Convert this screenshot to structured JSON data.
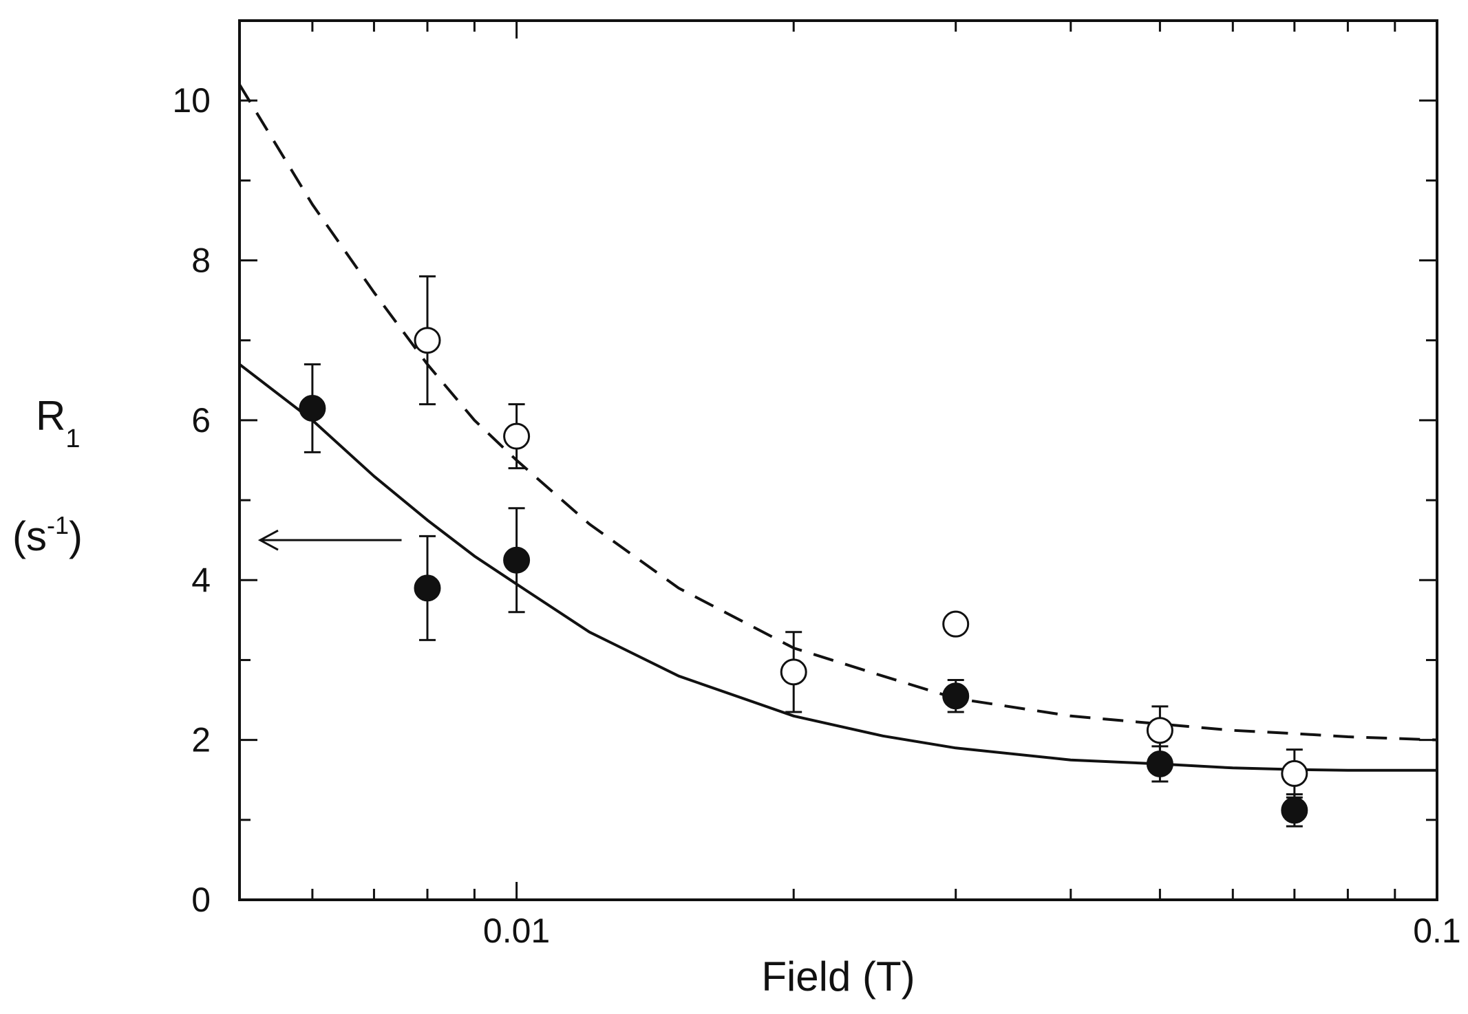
{
  "chart_data": {
    "type": "scatter",
    "title": "",
    "xlabel": "Field (T)",
    "ylabel": {
      "main": "R",
      "main_sub": "1",
      "unit_open": "(s",
      "unit_sup": "-1",
      "unit_close": ")"
    },
    "x_scale": "log",
    "xlim": [
      0.005,
      0.1
    ],
    "ylim": [
      0,
      11
    ],
    "x_tick_labels": [
      {
        "value": 0.01,
        "label": "0.01"
      },
      {
        "value": 0.1,
        "label": "0.1"
      }
    ],
    "y_tick_labels": [
      {
        "value": 0,
        "label": "0"
      },
      {
        "value": 2,
        "label": "2"
      },
      {
        "value": 4,
        "label": "4"
      },
      {
        "value": 6,
        "label": "6"
      },
      {
        "value": 8,
        "label": "8"
      },
      {
        "value": 10,
        "label": "10"
      }
    ],
    "grid": false,
    "series": [
      {
        "marker": "filled-circle",
        "points": [
          {
            "x": 0.006,
            "y": 6.15,
            "err": 0.55
          },
          {
            "x": 0.008,
            "y": 3.9,
            "err": 0.65
          },
          {
            "x": 0.01,
            "y": 4.25,
            "err": 0.65
          },
          {
            "x": 0.03,
            "y": 2.55,
            "err": 0.2
          },
          {
            "x": 0.05,
            "y": 1.7,
            "err": 0.22
          },
          {
            "x": 0.07,
            "y": 1.12,
            "err": 0.2
          }
        ]
      },
      {
        "marker": "open-circle",
        "points": [
          {
            "x": 0.008,
            "y": 7.0,
            "err": 0.8
          },
          {
            "x": 0.01,
            "y": 5.8,
            "err": 0.4
          },
          {
            "x": 0.02,
            "y": 2.85,
            "err": 0.5
          },
          {
            "x": 0.03,
            "y": 3.45,
            "err": 0
          },
          {
            "x": 0.05,
            "y": 2.12,
            "err": 0.3
          },
          {
            "x": 0.07,
            "y": 1.58,
            "err": 0.3
          }
        ]
      }
    ],
    "curves": [
      {
        "style": "solid",
        "points": [
          [
            0.005,
            6.7
          ],
          [
            0.006,
            6.0
          ],
          [
            0.007,
            5.3
          ],
          [
            0.008,
            4.75
          ],
          [
            0.009,
            4.3
          ],
          [
            0.01,
            3.95
          ],
          [
            0.012,
            3.35
          ],
          [
            0.015,
            2.8
          ],
          [
            0.02,
            2.3
          ],
          [
            0.025,
            2.05
          ],
          [
            0.03,
            1.9
          ],
          [
            0.04,
            1.75
          ],
          [
            0.05,
            1.7
          ],
          [
            0.06,
            1.65
          ],
          [
            0.07,
            1.63
          ],
          [
            0.08,
            1.62
          ],
          [
            0.1,
            1.62
          ]
        ]
      },
      {
        "style": "dashed",
        "points": [
          [
            0.005,
            10.2
          ],
          [
            0.006,
            8.7
          ],
          [
            0.007,
            7.6
          ],
          [
            0.008,
            6.7
          ],
          [
            0.009,
            6.0
          ],
          [
            0.01,
            5.5
          ],
          [
            0.012,
            4.7
          ],
          [
            0.015,
            3.9
          ],
          [
            0.02,
            3.15
          ],
          [
            0.025,
            2.8
          ],
          [
            0.03,
            2.52
          ],
          [
            0.04,
            2.3
          ],
          [
            0.05,
            2.2
          ],
          [
            0.06,
            2.12
          ],
          [
            0.07,
            2.08
          ],
          [
            0.08,
            2.04
          ],
          [
            0.1,
            2.0
          ]
        ]
      }
    ],
    "annotations": [
      {
        "type": "arrow",
        "pointing": "left",
        "at_y": 4.5,
        "x_from": 0.0075,
        "x_to": 0.005
      }
    ]
  }
}
